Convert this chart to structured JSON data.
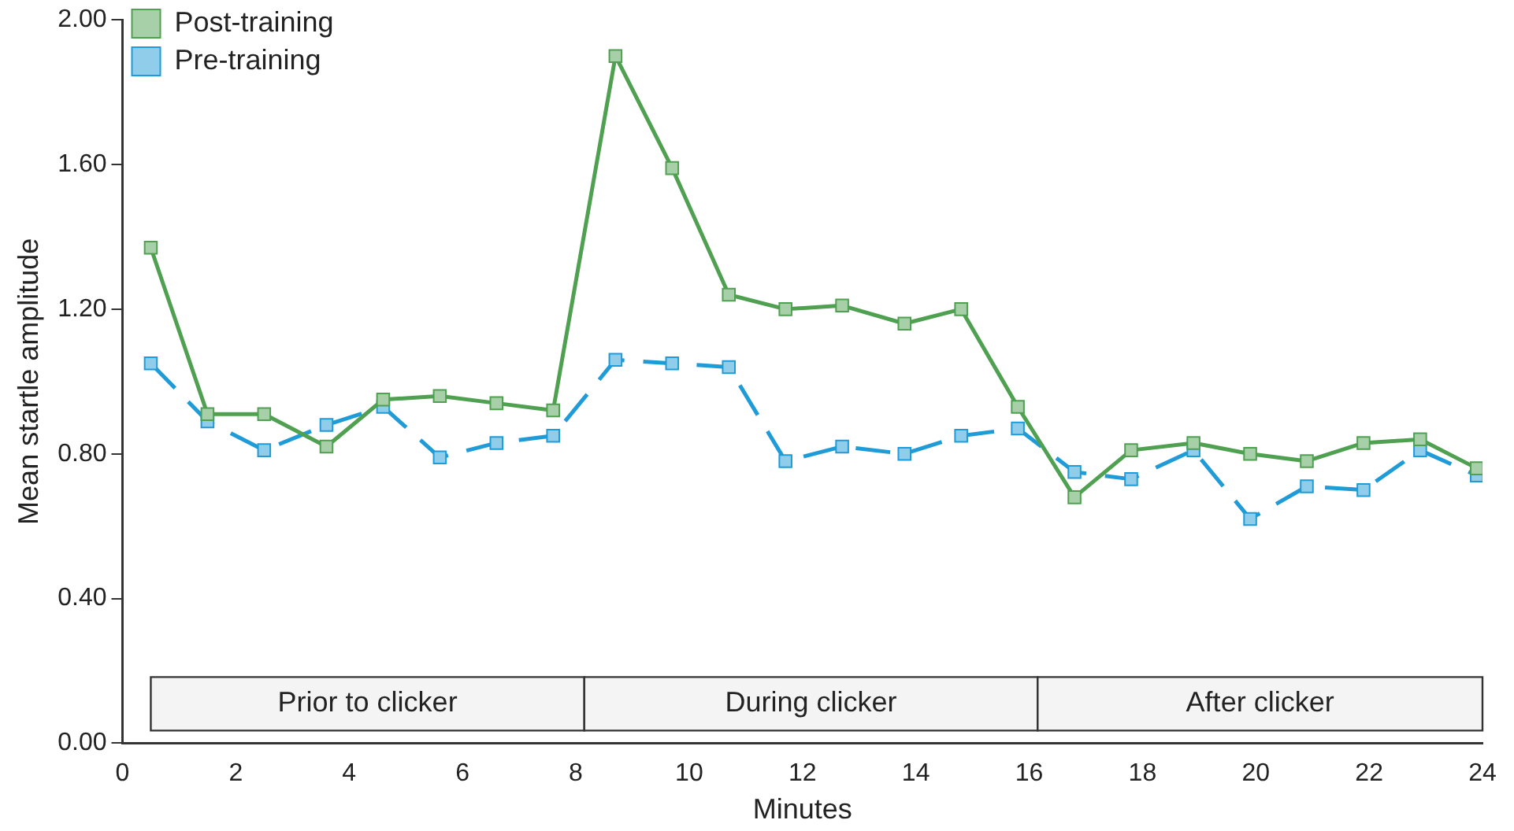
{
  "chart_data": {
    "type": "line",
    "xlabel": "Minutes",
    "ylabel": "Mean startle amplitude",
    "x": [
      0.5,
      1.5,
      2.5,
      3.6,
      4.6,
      5.6,
      6.6,
      7.6,
      8.7,
      9.7,
      10.7,
      11.7,
      12.7,
      13.8,
      14.8,
      15.8,
      16.8,
      17.8,
      18.9,
      19.9,
      20.9,
      21.9,
      22.9,
      23.9
    ],
    "series": [
      {
        "name": "Post-training",
        "color": "#4fa050",
        "line_style": "solid",
        "values": [
          1.37,
          0.91,
          0.91,
          0.82,
          0.95,
          0.96,
          0.94,
          0.92,
          1.9,
          1.59,
          1.24,
          1.2,
          1.21,
          1.16,
          1.2,
          0.93,
          0.68,
          0.81,
          0.83,
          0.8,
          0.78,
          0.83,
          0.84,
          0.76
        ]
      },
      {
        "name": "Pre-training",
        "color": "#1f9bd7",
        "line_style": "dashed",
        "values": [
          1.05,
          0.89,
          0.81,
          0.88,
          0.93,
          0.79,
          0.83,
          0.85,
          1.06,
          1.05,
          1.04,
          0.78,
          0.82,
          0.8,
          0.85,
          0.87,
          0.75,
          0.73,
          0.81,
          0.62,
          0.71,
          0.7,
          0.81,
          0.74
        ]
      }
    ],
    "xlim": [
      0,
      24
    ],
    "xticks": [
      0,
      2,
      4,
      6,
      8,
      10,
      12,
      14,
      16,
      18,
      20,
      22,
      24
    ],
    "ylim": [
      0,
      2
    ],
    "yticks": [
      {
        "value": 0,
        "label": "0.00"
      },
      {
        "value": 0.4,
        "label": "0.40"
      },
      {
        "value": 0.8,
        "label": "0.80"
      },
      {
        "value": 1.2,
        "label": "1.20"
      },
      {
        "value": 1.6,
        "label": "1.60"
      },
      {
        "value": 2,
        "label": "2.00"
      }
    ],
    "bands": [
      {
        "axis": "x",
        "from": 0.5,
        "to": 8.15,
        "label": "Prior to clicker",
        "color": "#f4f4f4"
      },
      {
        "axis": "x",
        "from": 8.15,
        "to": 16.15,
        "label": "During clicker",
        "color": "#f4f4f4"
      },
      {
        "axis": "x",
        "from": 16.15,
        "to": 24,
        "label": "After clicker",
        "color": "#f4f4f4"
      }
    ],
    "grid": false,
    "legend": "top left",
    "marker": "square"
  }
}
